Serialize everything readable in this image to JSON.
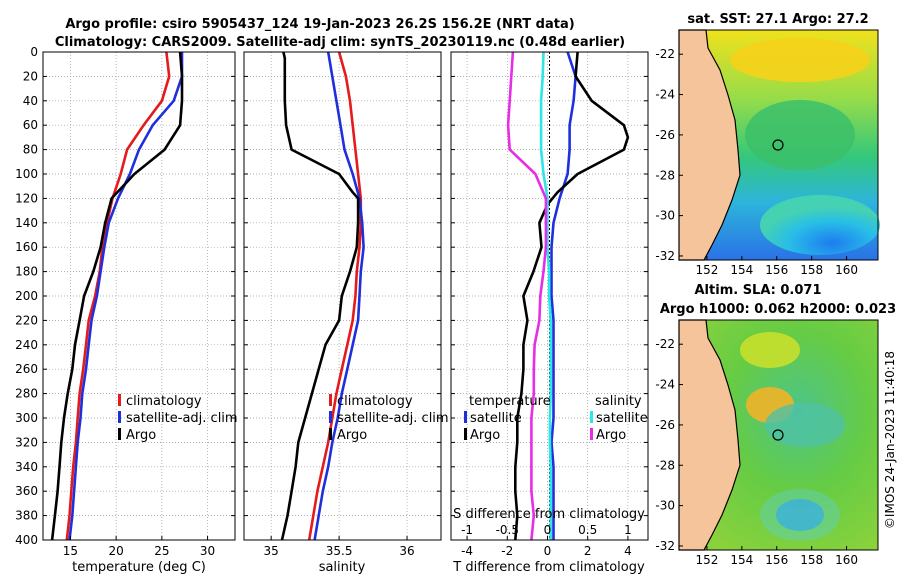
{
  "header": {
    "title_line1": "Argo profile: csiro 5905437_124 19-Jan-2023 26.2S 156.2E (NRT data)",
    "title_line2": "Climatology: CARS2009. Satellite-adj clim: synTS_20230119.nc (0.48d earlier)"
  },
  "footer": {
    "stamp": "©IMOS 24-Jan-2023 11:40:18"
  },
  "colors": {
    "climatology": "#e41a1c",
    "satellite": "#1f2fdc",
    "argo": "#000000",
    "sal_satellite": "#2de6e6",
    "sal_argo": "#e62ee6",
    "land": "#f6c49a",
    "grid": "#9a9a9a"
  },
  "legends": {
    "temperature": {
      "items": [
        "climatology",
        "satellite-adj. clim",
        "Argo"
      ]
    },
    "salinity": {
      "items": [
        "climatology",
        "satellite-adj. clim",
        "Argo"
      ]
    },
    "difference": {
      "temp_heading": "temperature",
      "sal_heading": "salinity",
      "temp_items": [
        "satellite",
        "Argo"
      ],
      "sal_items": [
        "satellite",
        "Argo"
      ]
    }
  },
  "maps": {
    "sst": {
      "title": "sat. SST: 27.1 Argo: 27.2",
      "x_ticks": [
        "152",
        "154",
        "156",
        "158",
        "160"
      ],
      "y_ticks": [
        "-22",
        "-24",
        "-26",
        "-28",
        "-30",
        "-32"
      ]
    },
    "sla": {
      "title_line1": "Altim. SLA: 0.071",
      "title_line2": "Argo h1000: 0.062 h2000: 0.023",
      "x_ticks": [
        "152",
        "154",
        "156",
        "158",
        "160"
      ],
      "y_ticks": [
        "-22",
        "-24",
        "-26",
        "-28",
        "-30",
        "-32"
      ]
    }
  },
  "chart_data": [
    {
      "type": "line",
      "name": "temperature",
      "xlabel": "temperature (deg C)",
      "ylabel": "",
      "xlim": [
        12,
        33
      ],
      "ylim": [
        400,
        0
      ],
      "x_ticks": [
        15,
        20,
        25,
        30
      ],
      "y_ticks": [
        0,
        20,
        40,
        60,
        80,
        100,
        120,
        140,
        160,
        180,
        200,
        220,
        240,
        260,
        280,
        300,
        320,
        340,
        360,
        380,
        400
      ],
      "grid": true,
      "legend_position": "lower-right",
      "series": [
        {
          "name": "climatology",
          "depth": [
            0,
            20,
            40,
            60,
            80,
            100,
            120,
            140,
            160,
            180,
            200,
            220,
            240,
            260,
            280,
            300,
            320,
            340,
            360,
            380,
            400
          ],
          "values": [
            25.5,
            25.8,
            25.0,
            23.0,
            21.2,
            20.5,
            19.6,
            19.0,
            18.5,
            18.2,
            17.7,
            17.0,
            16.7,
            16.4,
            16.0,
            15.8,
            15.6,
            15.3,
            15.1,
            14.9,
            14.6
          ]
        },
        {
          "name": "satellite-adj. clim",
          "depth": [
            0,
            20,
            40,
            60,
            80,
            100,
            120,
            140,
            160,
            180,
            200,
            220,
            240,
            260,
            280,
            300,
            320,
            340,
            360,
            380,
            400
          ],
          "values": [
            27.2,
            27.2,
            26.3,
            24.0,
            22.5,
            21.5,
            20.2,
            19.2,
            18.7,
            18.3,
            17.9,
            17.3,
            17.0,
            16.7,
            16.3,
            16.1,
            15.8,
            15.6,
            15.4,
            15.2,
            14.9
          ]
        },
        {
          "name": "Argo",
          "depth": [
            0,
            20,
            40,
            60,
            80,
            100,
            120,
            140,
            160,
            180,
            200,
            220,
            240,
            260,
            280,
            300,
            320,
            340,
            360,
            380,
            400
          ],
          "values": [
            27.0,
            27.2,
            27.2,
            27.0,
            25.3,
            22.0,
            19.5,
            18.8,
            18.3,
            17.5,
            16.5,
            16.0,
            15.5,
            15.2,
            14.7,
            14.3,
            14.0,
            13.8,
            13.6,
            13.3,
            13.0
          ]
        }
      ]
    },
    {
      "type": "line",
      "name": "salinity",
      "xlabel": "salinity",
      "ylabel": "",
      "xlim": [
        34.8,
        36.25
      ],
      "ylim": [
        400,
        0
      ],
      "x_ticks": [
        35,
        35.5,
        36
      ],
      "y_ticks": [
        0,
        20,
        40,
        60,
        80,
        100,
        120,
        140,
        160,
        180,
        200,
        220,
        240,
        260,
        280,
        300,
        320,
        340,
        360,
        380,
        400
      ],
      "grid": true,
      "legend_position": "lower-right",
      "series": [
        {
          "name": "climatology",
          "depth": [
            0,
            20,
            40,
            60,
            80,
            100,
            120,
            140,
            160,
            180,
            200,
            220,
            240,
            260,
            280,
            300,
            320,
            340,
            360,
            380,
            400
          ],
          "values": [
            35.5,
            35.55,
            35.58,
            35.6,
            35.62,
            35.64,
            35.66,
            35.66,
            35.65,
            35.63,
            35.62,
            35.6,
            35.56,
            35.52,
            35.48,
            35.45,
            35.42,
            35.38,
            35.34,
            35.31,
            35.28
          ]
        },
        {
          "name": "satellite-adj. clim",
          "depth": [
            0,
            20,
            40,
            60,
            80,
            100,
            120,
            140,
            160,
            180,
            200,
            220,
            240,
            260,
            280,
            300,
            320,
            340,
            360,
            380,
            400
          ],
          "values": [
            35.42,
            35.45,
            35.48,
            35.51,
            35.54,
            35.6,
            35.65,
            35.67,
            35.68,
            35.66,
            35.65,
            35.64,
            35.6,
            35.56,
            35.52,
            35.49,
            35.45,
            35.42,
            35.38,
            35.35,
            35.32
          ]
        },
        {
          "name": "Argo",
          "depth": [
            0,
            5,
            20,
            40,
            60,
            80,
            100,
            115,
            120,
            140,
            160,
            180,
            200,
            220,
            240,
            260,
            280,
            300,
            320,
            340,
            360,
            380,
            400
          ],
          "values": [
            35.09,
            35.1,
            35.1,
            35.1,
            35.11,
            35.15,
            35.5,
            35.6,
            35.64,
            35.64,
            35.63,
            35.58,
            35.52,
            35.5,
            35.4,
            35.35,
            35.3,
            35.25,
            35.2,
            35.18,
            35.15,
            35.12,
            35.08
          ]
        }
      ]
    },
    {
      "type": "line",
      "name": "difference",
      "xlabel": "T difference from climatology",
      "x2label": "S difference from climatology",
      "ylabel": "",
      "xlim": [
        -4.8,
        5.0
      ],
      "x2lim": [
        -1.2,
        1.25
      ],
      "ylim": [
        400,
        0
      ],
      "x_ticks": [
        -4,
        -2,
        0,
        2,
        4
      ],
      "x2_ticks": [
        -1,
        -0.5,
        0,
        0.5,
        1
      ],
      "x2_tick_labels": [
        "-1",
        "-0.5",
        "0",
        "0.5",
        "1"
      ],
      "y_ticks": [
        0,
        20,
        40,
        60,
        80,
        100,
        120,
        140,
        160,
        180,
        200,
        220,
        240,
        260,
        280,
        300,
        320,
        340,
        360,
        380,
        400
      ],
      "grid": true,
      "legend_position": "lower",
      "series": [
        {
          "name": "temperature satellite",
          "axis": "T",
          "depth": [
            0,
            20,
            40,
            60,
            80,
            100,
            120,
            140,
            160,
            180,
            200,
            220,
            240,
            260,
            280,
            300,
            320,
            340,
            360,
            380,
            400
          ],
          "values": [
            1.0,
            1.4,
            1.3,
            1.1,
            1.1,
            1.0,
            0.6,
            0.3,
            0.2,
            0.2,
            0.2,
            0.3,
            0.3,
            0.3,
            0.3,
            0.3,
            0.2,
            0.3,
            0.3,
            0.3,
            0.3
          ]
        },
        {
          "name": "temperature Argo",
          "axis": "T",
          "depth": [
            0,
            20,
            40,
            60,
            70,
            80,
            100,
            115,
            125,
            140,
            160,
            180,
            200,
            220,
            240,
            260,
            280,
            300,
            320,
            340,
            360,
            380,
            400
          ],
          "values": [
            1.5,
            1.4,
            2.2,
            3.8,
            4.0,
            3.8,
            1.5,
            0.5,
            0.0,
            -0.4,
            -0.3,
            -0.7,
            -1.2,
            -1.0,
            -1.2,
            -1.2,
            -1.3,
            -1.5,
            -1.5,
            -1.6,
            -1.6,
            -1.5,
            -1.6
          ]
        },
        {
          "name": "salinity satellite",
          "axis": "S",
          "depth": [
            0,
            20,
            40,
            60,
            80,
            100,
            120,
            140,
            160,
            180,
            200,
            220,
            240,
            260,
            280,
            300,
            320,
            340,
            360,
            380,
            400
          ],
          "values": [
            -0.05,
            -0.06,
            -0.08,
            -0.08,
            -0.08,
            -0.05,
            0.0,
            0.0,
            0.0,
            0.02,
            0.02,
            0.04,
            0.04,
            0.04,
            0.04,
            0.03,
            0.03,
            0.04,
            0.04,
            0.04,
            0.04
          ]
        },
        {
          "name": "salinity Argo",
          "axis": "S",
          "depth": [
            0,
            20,
            40,
            60,
            80,
            100,
            120,
            140,
            160,
            180,
            200,
            220,
            240,
            260,
            280,
            300,
            320,
            340,
            360,
            380,
            400
          ],
          "values": [
            -0.43,
            -0.45,
            -0.47,
            -0.49,
            -0.47,
            -0.15,
            -0.02,
            -0.02,
            -0.02,
            -0.05,
            -0.09,
            -0.1,
            -0.16,
            -0.17,
            -0.17,
            -0.2,
            -0.2,
            -0.2,
            -0.2,
            -0.17,
            -0.2
          ]
        }
      ]
    }
  ]
}
